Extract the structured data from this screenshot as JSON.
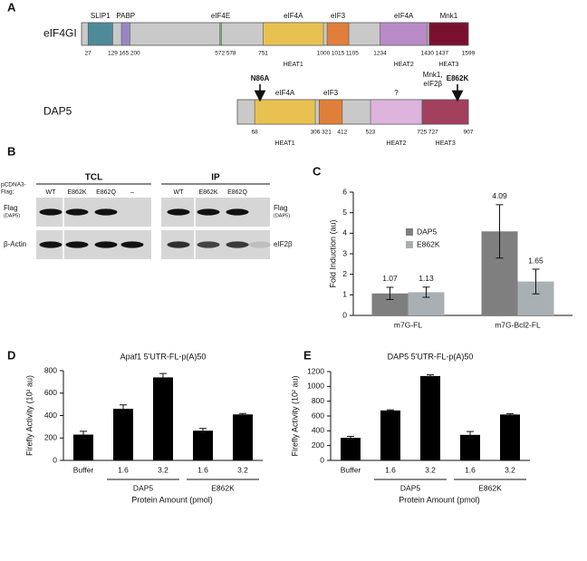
{
  "panel_a": {
    "letter": "A",
    "proteins": [
      {
        "name": "eIF4GI",
        "mutations": [],
        "domains": [
          {
            "name": "SLIP1",
            "start": 27,
            "end": 129,
            "color": "#4e8a98"
          },
          {
            "name": "PABP",
            "start": 165,
            "end": 200,
            "color": "#9a86c4"
          },
          {
            "name": "eIF4E",
            "start": 572,
            "end": 578,
            "color": "#6cc24a"
          },
          {
            "name": "eIF4A",
            "start": 751,
            "end": 1000,
            "color": "#e8c150",
            "heat": "HEAT1"
          },
          {
            "name": "eIF3",
            "start": 1015,
            "end": 1105,
            "color": "#e07f3a"
          },
          {
            "name": "eIF4A",
            "start": 1234,
            "end": 1430,
            "color": "#b98bc6",
            "heat": "HEAT2"
          },
          {
            "name": "Mnk1",
            "start": 1437,
            "end": 1599,
            "color": "#7a1030",
            "heat": "HEAT3"
          }
        ]
      },
      {
        "name": "DAP5",
        "mutations": [
          "N86A",
          "E862K"
        ],
        "domains": [
          {
            "name": "eIF4A",
            "start": 68,
            "end": 306,
            "color": "#e8c150",
            "heat": "HEAT1"
          },
          {
            "name": "eIF3",
            "start": 321,
            "end": 412,
            "color": "#e07f3a"
          },
          {
            "name": "?",
            "start": 523,
            "end": 725,
            "color": "#dcb4dc",
            "heat": "HEAT2"
          },
          {
            "label_lines": [
              "Mnk1,",
              "eIF2β"
            ],
            "start": 727,
            "end": 907,
            "color": "#a2405e",
            "heat": "HEAT3"
          }
        ]
      }
    ]
  },
  "panel_b": {
    "letter": "B",
    "vector_label": [
      "pCDNA3-",
      "Flag:"
    ],
    "blots": [
      {
        "title": "TCL",
        "lanes": [
          "WT",
          "E862K",
          "E862Q",
          "–"
        ],
        "rows": [
          {
            "label": "Flag",
            "sublabel": "(DAP5)"
          },
          {
            "label": "β-Actin"
          }
        ]
      },
      {
        "title": "IP",
        "lanes": [
          "WT",
          "E862K",
          "E862Q",
          null
        ],
        "rows": [
          {
            "label": "Flag",
            "sublabel": "(DAP5)"
          },
          {
            "label": "eIF2β"
          }
        ]
      }
    ]
  },
  "chart_data": [
    {
      "letter": "C",
      "type": "bar",
      "ylabel": "Fold Induction (au)",
      "categories": [
        "m7G-FL",
        "m7G-Bcl2-FL"
      ],
      "series": [
        {
          "name": "DAP5",
          "color": "#7f7f7f",
          "values": [
            1.07,
            4.09
          ],
          "errors": [
            0.3,
            1.3
          ]
        },
        {
          "name": "E862K",
          "color": "#a9b0b3",
          "values": [
            1.13,
            1.65
          ],
          "errors": [
            0.25,
            0.6
          ]
        }
      ],
      "ylim": [
        0,
        6
      ],
      "yticks": [
        0,
        1,
        2,
        3,
        4,
        5,
        6
      ],
      "legend": "upper-left"
    },
    {
      "letter": "D",
      "type": "bar",
      "title": "Apaf1 5'UTR-FL-p(A)50",
      "ylabel": "Firefly Activity (10² au)",
      "xlabel": "Protein Amount (pmol)",
      "categories": [
        "Buffer",
        "1.6",
        "3.2",
        "1.6",
        "3.2"
      ],
      "category_groups": [
        null,
        "DAP5",
        "DAP5",
        "E862K",
        "E862K"
      ],
      "values": [
        230,
        460,
        740,
        265,
        410
      ],
      "errors": [
        30,
        35,
        35,
        20,
        8
      ],
      "color": "#000000",
      "ylim": [
        0,
        800
      ],
      "yticks": [
        0,
        200,
        400,
        600,
        800
      ]
    },
    {
      "letter": "E",
      "type": "bar",
      "title": "DAP5 5'UTR-FL-p(A)50",
      "ylabel": "Firefly Activity (10² au)",
      "xlabel": "Protein Amount (pmol)",
      "categories": [
        "Buffer",
        "1.6",
        "3.2",
        "1.6",
        "3.2"
      ],
      "category_groups": [
        null,
        "DAP5",
        "DAP5",
        "E862K",
        "E862K"
      ],
      "values": [
        305,
        675,
        1140,
        345,
        620
      ],
      "errors": [
        20,
        8,
        15,
        45,
        12
      ],
      "color": "#000000",
      "ylim": [
        0,
        1200
      ],
      "yticks": [
        0,
        200,
        400,
        600,
        800,
        1000,
        1200
      ]
    }
  ]
}
